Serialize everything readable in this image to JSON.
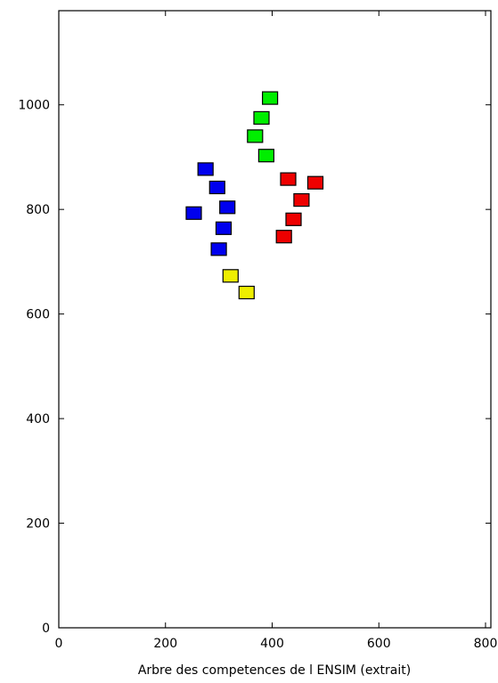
{
  "chart_data": {
    "type": "scatter",
    "title": "",
    "xlabel": "Arbre des competences de l ENSIM (extrait)",
    "ylabel": "",
    "xlim": [
      0,
      810
    ],
    "ylim": [
      0,
      1180
    ],
    "xticks": [
      0,
      200,
      400,
      600,
      800
    ],
    "yticks": [
      0,
      200,
      400,
      600,
      800,
      1000
    ],
    "xtick_labels": [
      "0",
      "200",
      "400",
      "600",
      "800"
    ],
    "ytick_labels": [
      "0",
      "200",
      "400",
      "600",
      "800",
      "1000"
    ],
    "grid": false,
    "legend": "none",
    "marker": "square",
    "series": [
      {
        "color": "#00ee00",
        "points": [
          [
            396,
            1013
          ],
          [
            380,
            975
          ],
          [
            368,
            940
          ],
          [
            389,
            903
          ]
        ]
      },
      {
        "color": "#0000ee",
        "points": [
          [
            275,
            877
          ],
          [
            297,
            842
          ],
          [
            316,
            804
          ],
          [
            253,
            793
          ],
          [
            309,
            764
          ],
          [
            300,
            724
          ]
        ]
      },
      {
        "color": "#ee0000",
        "points": [
          [
            430,
            858
          ],
          [
            481,
            851
          ],
          [
            455,
            818
          ],
          [
            440,
            781
          ],
          [
            422,
            748
          ]
        ]
      },
      {
        "color": "#eeee00",
        "points": [
          [
            322,
            673
          ],
          [
            352,
            641
          ]
        ]
      }
    ]
  }
}
